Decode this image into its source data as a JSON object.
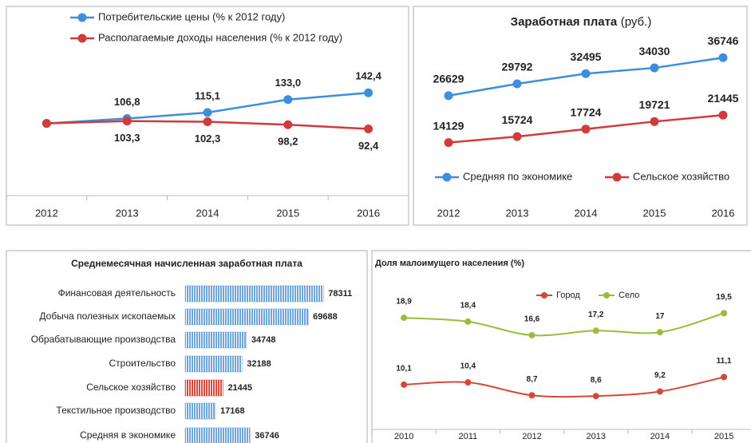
{
  "chart_data": [
    {
      "type": "line",
      "categories": [
        "2012",
        "2013",
        "2014",
        "2015",
        "2016"
      ],
      "series": [
        {
          "name": "Потребительские цены (% к 2012 году)",
          "color": "#3d8fd9",
          "values": [
            100,
            106.8,
            115.1,
            133.0,
            142.4
          ],
          "value_labels": [
            null,
            "106,8",
            "115,1",
            "133,0",
            "142,4"
          ],
          "label_side": "above"
        },
        {
          "name": "Располагаемые доходы населения (% к 2012 году)",
          "color": "#d23b3b",
          "values": [
            100,
            103.3,
            102.3,
            98.2,
            92.4
          ],
          "value_labels": [
            null,
            "103,3",
            "102,3",
            "98,2",
            "92,4"
          ],
          "label_side": "below"
        }
      ],
      "ylim": [
        0,
        260
      ],
      "legend": "top-left"
    },
    {
      "type": "line",
      "title": "Заработная плата",
      "subtitle": "(руб.)",
      "categories": [
        "2012",
        "2013",
        "2014",
        "2015",
        "2016"
      ],
      "series": [
        {
          "name": "Средняя по экономике",
          "color": "#3d8fd9",
          "values": [
            26629,
            29792,
            32495,
            34030,
            36746
          ],
          "label_side": "above"
        },
        {
          "name": "Сельское хозяйство",
          "color": "#d23b3b",
          "values": [
            14129,
            15724,
            17724,
            19721,
            21445
          ],
          "label_side": "above"
        }
      ],
      "ylim": [
        0,
        50000
      ],
      "legend": "bottom"
    },
    {
      "type": "barh",
      "title": "Среднемесячная начисленная заработная плата",
      "categories": [
        "Финансовая деятельность",
        "Добыча полезных ископаемых",
        "Обрабатывающие производства",
        "Строительство",
        "Сельское хозяйство",
        "Текстильное производство",
        "Средняя в экономике"
      ],
      "values": [
        78311,
        69688,
        34748,
        32188,
        21445,
        17168,
        36746
      ],
      "colors": [
        "#6fa6dd",
        "#6fa6dd",
        "#6fa6dd",
        "#6fa6dd",
        "#e0473a",
        "#6fa6dd",
        "#6fa6dd"
      ],
      "xlim": [
        0,
        80000
      ]
    },
    {
      "type": "line",
      "title": "Доля малоимущего населения (%)",
      "categories": [
        "2010",
        "2011",
        "2012",
        "2013",
        "2014",
        "2015"
      ],
      "series": [
        {
          "name": "Город",
          "color": "#d2493a",
          "values": [
            10.1,
            10.4,
            8.7,
            8.6,
            9.2,
            11.1
          ],
          "value_labels": [
            "10,1",
            "10,4",
            "8,7",
            "8,6",
            "9,2",
            "11,1"
          ],
          "label_side": "above"
        },
        {
          "name": "Село",
          "color": "#9cbb3c",
          "values": [
            18.9,
            18.4,
            16.6,
            17.2,
            17,
            19.5
          ],
          "value_labels": [
            "18,9",
            "18,4",
            "16,6",
            "17,2",
            "17",
            "19,5"
          ],
          "label_side": "above"
        }
      ],
      "ylim": [
        4,
        25
      ],
      "smooth": true,
      "legend": "top"
    }
  ]
}
